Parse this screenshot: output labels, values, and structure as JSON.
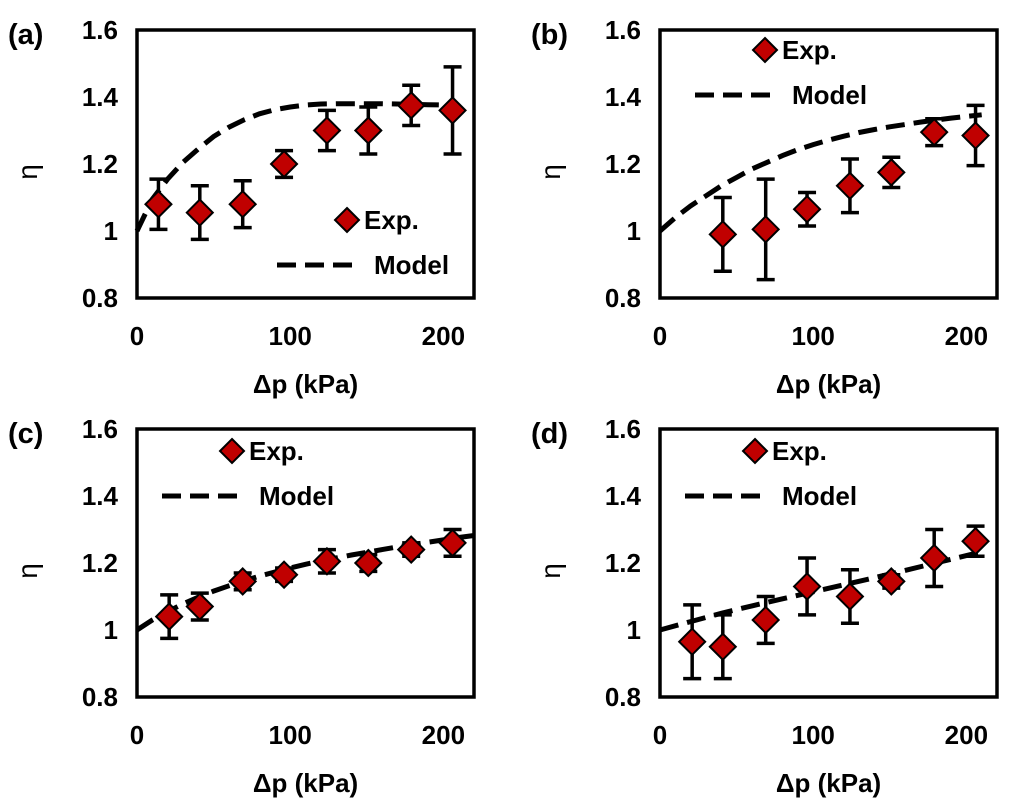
{
  "colors": {
    "marker_fill": "#c00000",
    "marker_stroke": "#000000",
    "axes": "#000000",
    "model_line": "#000000",
    "background": "#ffffff"
  },
  "chart_data": [
    {
      "type": "scatter",
      "panel_label": "(a)",
      "xlabel": "Δp (kPa)",
      "ylabel": "η",
      "xlim": [
        0,
        220
      ],
      "ylim": [
        0.8,
        1.6
      ],
      "xticks": [
        0,
        100,
        200
      ],
      "xtick_labels": [
        "0",
        "100",
        "200"
      ],
      "yticks": [
        0.8,
        1.0,
        1.2,
        1.4,
        1.6
      ],
      "ytick_labels": [
        "0.8",
        "1",
        "1.2",
        "1.4",
        "1.6"
      ],
      "legend": {
        "placement": "bottom-right",
        "exp_label": "Exp.",
        "model_label": "Model"
      },
      "exp": {
        "name": "Exp.",
        "x": [
          14,
          41,
          69,
          96,
          124,
          151,
          179,
          206
        ],
        "y": [
          1.08,
          1.055,
          1.08,
          1.2,
          1.3,
          1.3,
          1.375,
          1.36
        ],
        "err": [
          0.075,
          0.08,
          0.07,
          0.04,
          0.06,
          0.07,
          0.06,
          0.13
        ]
      },
      "model": {
        "name": "Model",
        "x": [
          0,
          10,
          20,
          30,
          40,
          50,
          60,
          70,
          80,
          90,
          100,
          110,
          120,
          130,
          140,
          150,
          160,
          170,
          180,
          190,
          200,
          210
        ],
        "y": [
          1.0,
          1.095,
          1.155,
          1.205,
          1.245,
          1.282,
          1.31,
          1.332,
          1.35,
          1.362,
          1.37,
          1.376,
          1.379,
          1.38,
          1.38,
          1.38,
          1.38,
          1.379,
          1.378,
          1.377,
          1.376,
          1.375
        ]
      }
    },
    {
      "type": "scatter",
      "panel_label": "(b)",
      "xlabel": "Δp (kPa)",
      "ylabel": "η",
      "xlim": [
        0,
        220
      ],
      "ylim": [
        0.8,
        1.6
      ],
      "xticks": [
        0,
        100,
        200
      ],
      "xtick_labels": [
        "0",
        "100",
        "200"
      ],
      "yticks": [
        0.8,
        1.0,
        1.2,
        1.4,
        1.6
      ],
      "ytick_labels": [
        "0.8",
        "1",
        "1.2",
        "1.4",
        "1.6"
      ],
      "legend": {
        "placement": "top-right",
        "exp_label": "Exp.",
        "model_label": "Model"
      },
      "exp": {
        "name": "Exp.",
        "x": [
          41,
          69,
          96,
          124,
          151,
          179,
          206
        ],
        "y": [
          0.99,
          1.005,
          1.065,
          1.135,
          1.175,
          1.295,
          1.285
        ],
        "err": [
          0.11,
          0.15,
          0.05,
          0.08,
          0.045,
          0.04,
          0.09
        ]
      },
      "model": {
        "name": "Model",
        "x": [
          0,
          10,
          20,
          30,
          40,
          50,
          60,
          70,
          80,
          90,
          100,
          110,
          120,
          130,
          140,
          150,
          160,
          170,
          180,
          190,
          200,
          210
        ],
        "y": [
          1.0,
          1.04,
          1.075,
          1.105,
          1.135,
          1.16,
          1.185,
          1.205,
          1.225,
          1.243,
          1.258,
          1.271,
          1.283,
          1.294,
          1.303,
          1.311,
          1.318,
          1.325,
          1.331,
          1.337,
          1.342,
          1.347
        ]
      }
    },
    {
      "type": "scatter",
      "panel_label": "(c)",
      "xlabel": "Δp (kPa)",
      "ylabel": "η",
      "xlim": [
        0,
        220
      ],
      "ylim": [
        0.8,
        1.6
      ],
      "xticks": [
        0,
        100,
        200
      ],
      "xtick_labels": [
        "0",
        "100",
        "200"
      ],
      "yticks": [
        0.8,
        1.0,
        1.2,
        1.4,
        1.6
      ],
      "ytick_labels": [
        "0.8",
        "1",
        "1.2",
        "1.4",
        "1.6"
      ],
      "legend": {
        "placement": "top-left",
        "exp_label": "Exp.",
        "model_label": "Model"
      },
      "exp": {
        "name": "Exp.",
        "x": [
          21,
          41,
          69,
          96,
          124,
          151,
          179,
          206
        ],
        "y": [
          1.04,
          1.07,
          1.145,
          1.165,
          1.205,
          1.2,
          1.24,
          1.26
        ],
        "err": [
          0.065,
          0.04,
          0.025,
          0.02,
          0.035,
          0.025,
          0.02,
          0.04
        ]
      },
      "model": {
        "name": "Model",
        "x": [
          0,
          10,
          20,
          30,
          40,
          50,
          60,
          70,
          80,
          90,
          100,
          110,
          120,
          130,
          140,
          150,
          160,
          170,
          180,
          190,
          200,
          210,
          220
        ],
        "y": [
          1.0,
          1.03,
          1.055,
          1.078,
          1.098,
          1.116,
          1.132,
          1.147,
          1.161,
          1.173,
          1.185,
          1.196,
          1.206,
          1.215,
          1.224,
          1.232,
          1.24,
          1.248,
          1.255,
          1.262,
          1.269,
          1.276,
          1.282
        ]
      }
    },
    {
      "type": "scatter",
      "panel_label": "(d)",
      "xlabel": "Δp (kPa)",
      "ylabel": "η",
      "xlim": [
        0,
        220
      ],
      "ylim": [
        0.8,
        1.6
      ],
      "xticks": [
        0,
        100,
        200
      ],
      "xtick_labels": [
        "0",
        "100",
        "200"
      ],
      "yticks": [
        0.8,
        1.0,
        1.2,
        1.4,
        1.6
      ],
      "ytick_labels": [
        "0.8",
        "1",
        "1.2",
        "1.4",
        "1.6"
      ],
      "legend": {
        "placement": "top-left",
        "exp_label": "Exp.",
        "model_label": "Model"
      },
      "exp": {
        "name": "Exp.",
        "x": [
          21,
          41,
          69,
          96,
          124,
          151,
          179,
          206
        ],
        "y": [
          0.965,
          0.95,
          1.03,
          1.13,
          1.1,
          1.145,
          1.215,
          1.265
        ],
        "err": [
          0.11,
          0.095,
          0.07,
          0.085,
          0.08,
          0.02,
          0.085,
          0.045
        ]
      },
      "model": {
        "name": "Model",
        "x": [
          0,
          20,
          40,
          60,
          80,
          100,
          120,
          140,
          160,
          180,
          200,
          210
        ],
        "y": [
          1.0,
          1.025,
          1.05,
          1.072,
          1.093,
          1.114,
          1.135,
          1.156,
          1.178,
          1.2,
          1.222,
          1.233
        ]
      }
    }
  ]
}
